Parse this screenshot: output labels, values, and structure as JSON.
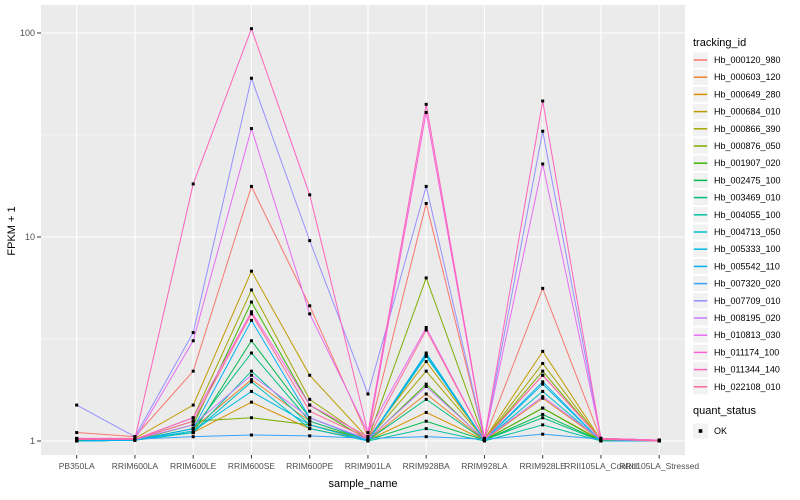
{
  "chart_data": {
    "type": "line",
    "xlabel": "sample_name",
    "ylabel": "FPKM + 1",
    "y_scale": "log10",
    "y_ticks": [
      1,
      10,
      100
    ],
    "y_minor_ticks": [
      3.1623,
      31.623
    ],
    "ylim": [
      0.9,
      140
    ],
    "grid": true,
    "panel_bg": "#EBEBEB",
    "grid_color": "#FFFFFF",
    "tick_color": "#333333",
    "tick_label_color": "#4D4D4D",
    "point_color": "#000000",
    "point_shape": "square",
    "categories": [
      "PB350LA",
      "RRIM600LA",
      "RRIM600LE",
      "RRIM600SE",
      "RRIM600PE",
      "RRIM901LA",
      "RRIM928BA",
      "RRIM928LA",
      "RRIM928LE",
      "RRII105LA_Control",
      "RRII105LA_Stressed"
    ],
    "series": [
      {
        "name": "Hb_000120_980",
        "color": "#F8766D",
        "values": [
          1.1,
          1.05,
          2.2,
          17.7,
          4.6,
          1.05,
          14.6,
          1.02,
          5.6,
          1.02,
          1.01
        ]
      },
      {
        "name": "Hb_000603_120",
        "color": "#EA8331",
        "values": [
          1.02,
          1.01,
          1.15,
          2.0,
          1.25,
          1.01,
          1.7,
          1.01,
          1.62,
          1.01,
          1.0
        ]
      },
      {
        "name": "Hb_000649_280",
        "color": "#D89000",
        "values": [
          1.01,
          1.01,
          1.1,
          1.55,
          1.15,
          1.01,
          1.38,
          1.01,
          1.45,
          1.01,
          1.0
        ]
      },
      {
        "name": "Hb_000684_010",
        "color": "#C09B00",
        "values": [
          1.02,
          1.03,
          1.5,
          6.8,
          2.1,
          1.03,
          2.45,
          1.02,
          2.75,
          1.01,
          1.0
        ]
      },
      {
        "name": "Hb_000866_390",
        "color": "#A3A500",
        "values": [
          1.01,
          1.02,
          1.3,
          5.5,
          1.6,
          1.02,
          2.2,
          1.02,
          2.4,
          1.01,
          1.0
        ]
      },
      {
        "name": "Hb_000876_050",
        "color": "#7CAE00",
        "values": [
          1.01,
          1.02,
          1.25,
          1.3,
          1.2,
          1.02,
          6.3,
          1.02,
          2.2,
          1.01,
          1.0
        ]
      },
      {
        "name": "Hb_001907_020",
        "color": "#39B600",
        "values": [
          1.01,
          1.01,
          1.2,
          4.8,
          1.5,
          1.01,
          1.9,
          1.01,
          1.45,
          1.0,
          1.0
        ]
      },
      {
        "name": "Hb_002475_100",
        "color": "#00BB4E",
        "values": [
          1.0,
          1.01,
          1.1,
          3.1,
          1.3,
          1.01,
          1.25,
          1.01,
          1.35,
          1.0,
          1.0
        ]
      },
      {
        "name": "Hb_003469_010",
        "color": "#00BF7D",
        "values": [
          1.0,
          1.01,
          1.15,
          2.7,
          1.25,
          1.01,
          1.6,
          1.01,
          1.3,
          1.0,
          1.0
        ]
      },
      {
        "name": "Hb_004055_100",
        "color": "#00C1A3",
        "values": [
          1.0,
          1.01,
          1.1,
          2.2,
          1.2,
          1.0,
          1.15,
          1.0,
          1.2,
          1.0,
          1.0
        ]
      },
      {
        "name": "Hb_004713_050",
        "color": "#00BFC4",
        "values": [
          1.0,
          1.01,
          1.1,
          1.95,
          1.15,
          1.0,
          2.6,
          1.01,
          1.75,
          1.0,
          1.0
        ]
      },
      {
        "name": "Hb_005333_100",
        "color": "#00BAE0",
        "values": [
          1.0,
          1.01,
          1.12,
          1.75,
          1.2,
          1.0,
          2.7,
          1.01,
          1.9,
          1.0,
          1.0
        ]
      },
      {
        "name": "Hb_005542_110",
        "color": "#00B0F6",
        "values": [
          1.0,
          1.01,
          1.15,
          3.9,
          1.3,
          1.01,
          2.65,
          1.01,
          1.95,
          1.0,
          1.0
        ]
      },
      {
        "name": "Hb_007320_020",
        "color": "#35A2FF",
        "values": [
          1.02,
          1.02,
          1.05,
          1.07,
          1.06,
          1.03,
          1.05,
          1.02,
          1.08,
          1.02,
          1.01
        ]
      },
      {
        "name": "Hb_007709_010",
        "color": "#9590FF",
        "values": [
          1.5,
          1.05,
          3.4,
          60.0,
          9.6,
          1.7,
          17.7,
          1.02,
          33.0,
          1.03,
          1.01
        ]
      },
      {
        "name": "Hb_008195_020",
        "color": "#C77CFF",
        "values": [
          1.02,
          1.02,
          1.2,
          2.1,
          1.3,
          1.02,
          1.85,
          1.02,
          1.65,
          1.02,
          1.0
        ]
      },
      {
        "name": "Hb_010813_030",
        "color": "#E76BF3",
        "values": [
          1.03,
          1.02,
          3.1,
          34.0,
          4.2,
          1.1,
          3.6,
          1.02,
          22.8,
          1.03,
          1.01
        ]
      },
      {
        "name": "Hb_011174_100",
        "color": "#FA62DB",
        "values": [
          1.02,
          1.02,
          1.3,
          4.3,
          1.5,
          1.05,
          40.8,
          1.02,
          2.1,
          1.02,
          1.01
        ]
      },
      {
        "name": "Hb_011344_140",
        "color": "#FF62BC",
        "values": [
          1.03,
          1.03,
          18.2,
          105.0,
          16.1,
          1.1,
          44.7,
          1.03,
          46.4,
          1.03,
          1.01
        ]
      },
      {
        "name": "Hb_022108_010",
        "color": "#FF6A98",
        "values": [
          1.02,
          1.02,
          1.25,
          4.2,
          1.4,
          1.03,
          3.5,
          1.02,
          2.1,
          1.02,
          1.0
        ]
      }
    ],
    "legend": {
      "position": "right",
      "key_bg": "#F2F2F2",
      "line_legend_title": "tracking_id",
      "point_legend_title": "quant_status",
      "point_legend_items": [
        {
          "label": "OK"
        }
      ]
    }
  }
}
